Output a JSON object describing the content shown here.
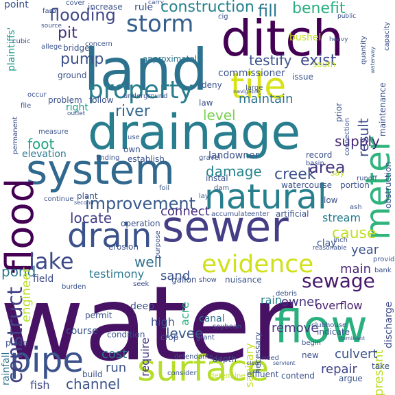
{
  "words": [
    {
      "text": "water",
      "color": "#471164",
      "rotated": false
    },
    {
      "text": "drainage",
      "color": "#287d8e",
      "rotated": false
    },
    {
      "text": "system",
      "color": "#31688e",
      "rotated": false
    },
    {
      "text": "sewer",
      "color": "#433e85",
      "rotated": false
    },
    {
      "text": "land",
      "color": "#2c728e",
      "rotated": false
    },
    {
      "text": "ditch",
      "color": "#440154",
      "rotated": false
    },
    {
      "text": "natural",
      "color": "#277f8e",
      "rotated": false
    },
    {
      "text": "drain",
      "color": "#3b528b",
      "rotated": false
    },
    {
      "text": "flood",
      "color": "#440154",
      "rotated": true
    },
    {
      "text": "surface",
      "color": "#b5de2b",
      "rotated": false
    },
    {
      "text": "flow",
      "color": "#2ab07f",
      "rotated": false
    },
    {
      "text": "pipe",
      "color": "#3b528b",
      "rotated": false
    },
    {
      "text": "meter",
      "color": "#2fb47c",
      "rotated": true
    },
    {
      "text": "tile",
      "color": "#d8e219",
      "rotated": false
    },
    {
      "text": "evidence",
      "color": "#d0e11c",
      "rotated": false
    },
    {
      "text": "property",
      "color": "#287d8e",
      "rotated": false
    },
    {
      "text": "storm",
      "color": "#355f8d",
      "rotated": false
    },
    {
      "text": "construction",
      "color": "#26828e",
      "rotated": false
    },
    {
      "text": "lake",
      "color": "#3e4989",
      "rotated": false
    },
    {
      "text": "improvement",
      "color": "#38598c",
      "rotated": false
    },
    {
      "text": "sewage",
      "color": "#481a6c",
      "rotated": false
    },
    {
      "text": "construct",
      "color": "#424086",
      "rotated": true
    },
    {
      "text": "flooding",
      "color": "#3f4889",
      "rotated": false
    },
    {
      "text": "fill",
      "color": "#2a788e",
      "rotated": false
    },
    {
      "text": "benefit",
      "color": "#29af7f",
      "rotated": false
    },
    {
      "text": "pit",
      "color": "#46327e",
      "rotated": false
    },
    {
      "text": "pump",
      "color": "#3b528b",
      "rotated": false
    },
    {
      "text": "testify",
      "color": "#3b528b",
      "rotated": false
    },
    {
      "text": "exist",
      "color": "#3e4989",
      "rotated": false
    },
    {
      "text": "river",
      "color": "#31688e",
      "rotated": false
    },
    {
      "text": "level",
      "color": "#7ad151",
      "rotated": false
    },
    {
      "text": "maintain",
      "color": "#2c728e",
      "rotated": false
    },
    {
      "text": "damage",
      "color": "#25838e",
      "rotated": false
    },
    {
      "text": "creek",
      "color": "#3b528b",
      "rotated": false
    },
    {
      "text": "area",
      "color": "#453781",
      "rotated": false
    },
    {
      "text": "supply",
      "color": "#482878",
      "rotated": false
    },
    {
      "text": "foot",
      "color": "#20a386",
      "rotated": false
    },
    {
      "text": "result",
      "color": "#3e4989",
      "rotated": true
    },
    {
      "text": "cause",
      "color": "#c2df23",
      "rotated": false
    },
    {
      "text": "stream",
      "color": "#287d8e",
      "rotated": false
    },
    {
      "text": "connect",
      "color": "#46307e",
      "rotated": false
    },
    {
      "text": "locate",
      "color": "#424086",
      "rotated": false
    },
    {
      "text": "year",
      "color": "#3b528b",
      "rotated": false
    },
    {
      "text": "main",
      "color": "#482677",
      "rotated": false
    },
    {
      "text": "well",
      "color": "#2d708e",
      "rotated": false
    },
    {
      "text": "pond",
      "color": "#2a788e",
      "rotated": false
    },
    {
      "text": "sand",
      "color": "#3b528b",
      "rotated": false
    },
    {
      "text": "testimony",
      "color": "#2a788e",
      "rotated": false
    },
    {
      "text": "engineer",
      "color": "#b8de29",
      "rotated": true
    },
    {
      "text": "field",
      "color": "#3e4a89",
      "rotated": false
    },
    {
      "text": "owner",
      "color": "#46337f",
      "rotated": false
    },
    {
      "text": "rain",
      "color": "#26828e",
      "rotated": false
    },
    {
      "text": "overflow",
      "color": "#481c6e",
      "rotated": false
    },
    {
      "text": "present",
      "color": "#bddf26",
      "rotated": true
    },
    {
      "text": "remove",
      "color": "#453882",
      "rotated": false
    },
    {
      "text": "culvert",
      "color": "#3a548c",
      "rotated": false
    },
    {
      "text": "repair",
      "color": "#404588",
      "rotated": false
    },
    {
      "text": "levee",
      "color": "#39568c",
      "rotated": false
    },
    {
      "text": "cost",
      "color": "#2a788e",
      "rotated": false
    },
    {
      "text": "run",
      "color": "#3b528b",
      "rotated": false
    },
    {
      "text": "channel",
      "color": "#3b528b",
      "rotated": false
    },
    {
      "text": "fish",
      "color": "#3e4989",
      "rotated": false
    },
    {
      "text": "canal",
      "color": "#2c728e",
      "rotated": false
    },
    {
      "text": "high",
      "color": "#3b528b",
      "rotated": false
    },
    {
      "text": "require",
      "color": "#443983",
      "rotated": true
    },
    {
      "text": "acre",
      "color": "#2db27d",
      "rotated": true
    },
    {
      "text": "sanitary",
      "color": "#c8e020",
      "rotated": true
    },
    {
      "text": "necessary",
      "color": "#3b528b",
      "rotated": true
    },
    {
      "text": "discharge",
      "color": "#3e4989",
      "rotated": true
    },
    {
      "text": "point",
      "color": "#3b528b",
      "rotated": false
    },
    {
      "text": "farm",
      "color": "#3b528b",
      "rotated": false
    },
    {
      "text": "increase",
      "color": "#3b528b",
      "rotated": false
    },
    {
      "text": "rule",
      "color": "#3b528b",
      "rotated": false
    },
    {
      "text": "cover",
      "color": "#3b528b",
      "rotated": false
    },
    {
      "text": "carry",
      "color": "#3b528b",
      "rotated": false
    },
    {
      "text": "bushel",
      "color": "#c2df23",
      "rotated": false
    },
    {
      "text": "cig",
      "color": "#3b528b",
      "rotated": false
    },
    {
      "text": "public",
      "color": "#3b528b",
      "rotated": false
    },
    {
      "text": "approximately",
      "color": "#2c728e",
      "rotated": false
    },
    {
      "text": "bridge",
      "color": "#3b528b",
      "rotated": false
    },
    {
      "text": "concern",
      "color": "#3b528b",
      "rotated": false
    },
    {
      "text": "commissioner",
      "color": "#3b528b",
      "rotated": false
    },
    {
      "text": "plaintiffs'",
      "color": "#1f9a8a",
      "rotated": true
    },
    {
      "text": "ground",
      "color": "#3b528b",
      "rotated": false
    },
    {
      "text": "issue",
      "color": "#3b528b",
      "rotated": false
    },
    {
      "text": "deny",
      "color": "#3b528b",
      "rotated": false
    },
    {
      "text": "prior",
      "color": "#3b528b",
      "rotated": true
    },
    {
      "text": "maintenance",
      "color": "#3b528b",
      "rotated": true
    },
    {
      "text": "follow",
      "color": "#3b528b",
      "rotated": false
    },
    {
      "text": "underground",
      "color": "#3b528b",
      "rotated": false
    },
    {
      "text": "law",
      "color": "#3b528b",
      "rotated": false
    },
    {
      "text": "problem",
      "color": "#3b528b",
      "rotated": false
    },
    {
      "text": "right",
      "color": "#1f9a8a",
      "rotated": false
    },
    {
      "text": "occur",
      "color": "#3b528b",
      "rotated": false
    },
    {
      "text": "connection",
      "color": "#3b528b",
      "rotated": true
    },
    {
      "text": "elevation",
      "color": "#2a788e",
      "rotated": false
    },
    {
      "text": "finding",
      "color": "#3b528b",
      "rotated": false
    },
    {
      "text": "establish",
      "color": "#3b528b",
      "rotated": false
    },
    {
      "text": "own",
      "color": "#3b528b",
      "rotated": false
    },
    {
      "text": "use",
      "color": "#3b528b",
      "rotated": false
    },
    {
      "text": "landowner",
      "color": "#3b528b",
      "rotated": false
    },
    {
      "text": "record",
      "color": "#3b528b",
      "rotated": false
    },
    {
      "text": "basin",
      "color": "#3b528b",
      "rotated": false
    },
    {
      "text": "portion",
      "color": "#3b528b",
      "rotated": false
    },
    {
      "text": "obstruction",
      "color": "#3b528b",
      "rotated": true
    },
    {
      "text": "instal",
      "color": "#3b528b",
      "rotated": false
    },
    {
      "text": "say",
      "color": "#c2df23",
      "rotated": false
    },
    {
      "text": "watercourse",
      "color": "#3b528b",
      "rotated": false
    },
    {
      "text": "dam",
      "color": "#3b528b",
      "rotated": false
    },
    {
      "text": "plant",
      "color": "#3b528b",
      "rotated": false
    },
    {
      "text": "accumulate",
      "color": "#3b528b",
      "rotated": false
    },
    {
      "text": "enter",
      "color": "#3b528b",
      "rotated": false
    },
    {
      "text": "artificial",
      "color": "#3b528b",
      "rotated": false
    },
    {
      "text": "operation",
      "color": "#3b528b",
      "rotated": false
    },
    {
      "text": "clay",
      "color": "#3b528b",
      "rotated": false
    },
    {
      "text": "inch",
      "color": "#3b528b",
      "rotated": false
    },
    {
      "text": "erosion",
      "color": "#3b528b",
      "rotated": false
    },
    {
      "text": "gallon",
      "color": "#3b528b",
      "rotated": false
    },
    {
      "text": "nuisance",
      "color": "#3b528b",
      "rotated": false
    },
    {
      "text": "seek",
      "color": "#3b528b",
      "rotated": false
    },
    {
      "text": "show",
      "color": "#3b528b",
      "rotated": false
    },
    {
      "text": "permit",
      "color": "#3b528b",
      "rotated": false
    },
    {
      "text": "deep",
      "color": "#3b528b",
      "rotated": false
    },
    {
      "text": "course",
      "color": "#3b528b",
      "rotated": false
    },
    {
      "text": "condition",
      "color": "#3b528b",
      "rotated": false
    },
    {
      "text": "place",
      "color": "#3b528b",
      "rotated": false
    },
    {
      "text": "crop",
      "color": "#3b528b",
      "rotated": false
    },
    {
      "text": "build",
      "color": "#3b528b",
      "rotated": false
    },
    {
      "text": "take",
      "color": "#3b528b",
      "rotated": false
    },
    {
      "text": "depth",
      "color": "#3b528b",
      "rotated": false
    },
    {
      "text": "consider",
      "color": "#3b528b",
      "rotated": false
    },
    {
      "text": "determine",
      "color": "#c2df23",
      "rotated": false
    },
    {
      "text": "effluent",
      "color": "#3b528b",
      "rotated": false
    },
    {
      "text": "contend",
      "color": "#3b528b",
      "rotated": false
    },
    {
      "text": "argue",
      "color": "#3b528b",
      "rotated": false
    },
    {
      "text": "need",
      "color": "#3b528b",
      "rotated": false
    },
    {
      "text": "rainfall",
      "color": "#2c728e",
      "rotated": true
    },
    {
      "text": "grant",
      "color": "#3b528b",
      "rotated": false
    },
    {
      "text": "soybean",
      "color": "#3b528b",
      "rotated": false
    },
    {
      "text": "defendants",
      "color": "#3b528b",
      "rotated": false
    },
    {
      "text": "clean",
      "color": "#3b528b",
      "rotated": false
    },
    {
      "text": "servient",
      "color": "#3b528b",
      "rotated": false
    },
    {
      "text": "clubhouse",
      "color": "#3b528b",
      "rotated": false
    },
    {
      "text": "indicate",
      "color": "#3b528b",
      "rotated": false
    },
    {
      "text": "dominant",
      "color": "#3b528b",
      "rotated": false
    },
    {
      "text": "new",
      "color": "#3b528b",
      "rotated": false
    },
    {
      "text": "begin",
      "color": "#3b528b",
      "rotated": false
    },
    {
      "text": "south",
      "color": "#c2df23",
      "rotated": false
    },
    {
      "text": "heavy",
      "color": "#3b528b",
      "rotated": false
    },
    {
      "text": "navigable",
      "color": "#3b528b",
      "rotated": false
    },
    {
      "text": "large",
      "color": "#3b528b",
      "rotated": false
    },
    {
      "text": "quantity",
      "color": "#3b528b",
      "rotated": true
    },
    {
      "text": "waterway",
      "color": "#3b528b",
      "rotated": true
    },
    {
      "text": "capacity",
      "color": "#3b528b",
      "rotated": true
    },
    {
      "text": "low",
      "color": "#3b528b",
      "rotated": false
    },
    {
      "text": "ash",
      "color": "#3b528b",
      "rotated": false
    },
    {
      "text": "runoff",
      "color": "#3b528b",
      "rotated": false
    },
    {
      "text": "bank",
      "color": "#3b528b",
      "rotated": false
    },
    {
      "text": "provide",
      "color": "#3b528b",
      "rotated": false
    },
    {
      "text": "debris",
      "color": "#3b528b",
      "rotated": false
    },
    {
      "text": "reasonable",
      "color": "#3b528b",
      "rotated": false
    },
    {
      "text": "burden",
      "color": "#3b528b",
      "rotated": false
    },
    {
      "text": "cubic",
      "color": "#3b528b",
      "rotated": false
    },
    {
      "text": "source",
      "color": "#3b528b",
      "rotated": false
    },
    {
      "text": "allege",
      "color": "#3b528b",
      "rotated": false
    },
    {
      "text": "permanent",
      "color": "#3b528b",
      "rotated": true
    },
    {
      "text": "gravel",
      "color": "#3b528b",
      "rotated": false
    },
    {
      "text": "foil",
      "color": "#3b528b",
      "rotated": false
    },
    {
      "text": "second",
      "color": "#3b528b",
      "rotated": false
    },
    {
      "text": "continue",
      "color": "#3b528b",
      "rotated": false
    },
    {
      "text": "purpose",
      "color": "#3b528b",
      "rotated": true
    },
    {
      "text": "lay",
      "color": "#3b528b",
      "rotated": false
    },
    {
      "text": "measure",
      "color": "#3b528b",
      "rotated": false
    },
    {
      "text": "outlet",
      "color": "#3b528b",
      "rotated": false
    },
    {
      "text": "file",
      "color": "#3b528b",
      "rotated": false
    }
  ]
}
